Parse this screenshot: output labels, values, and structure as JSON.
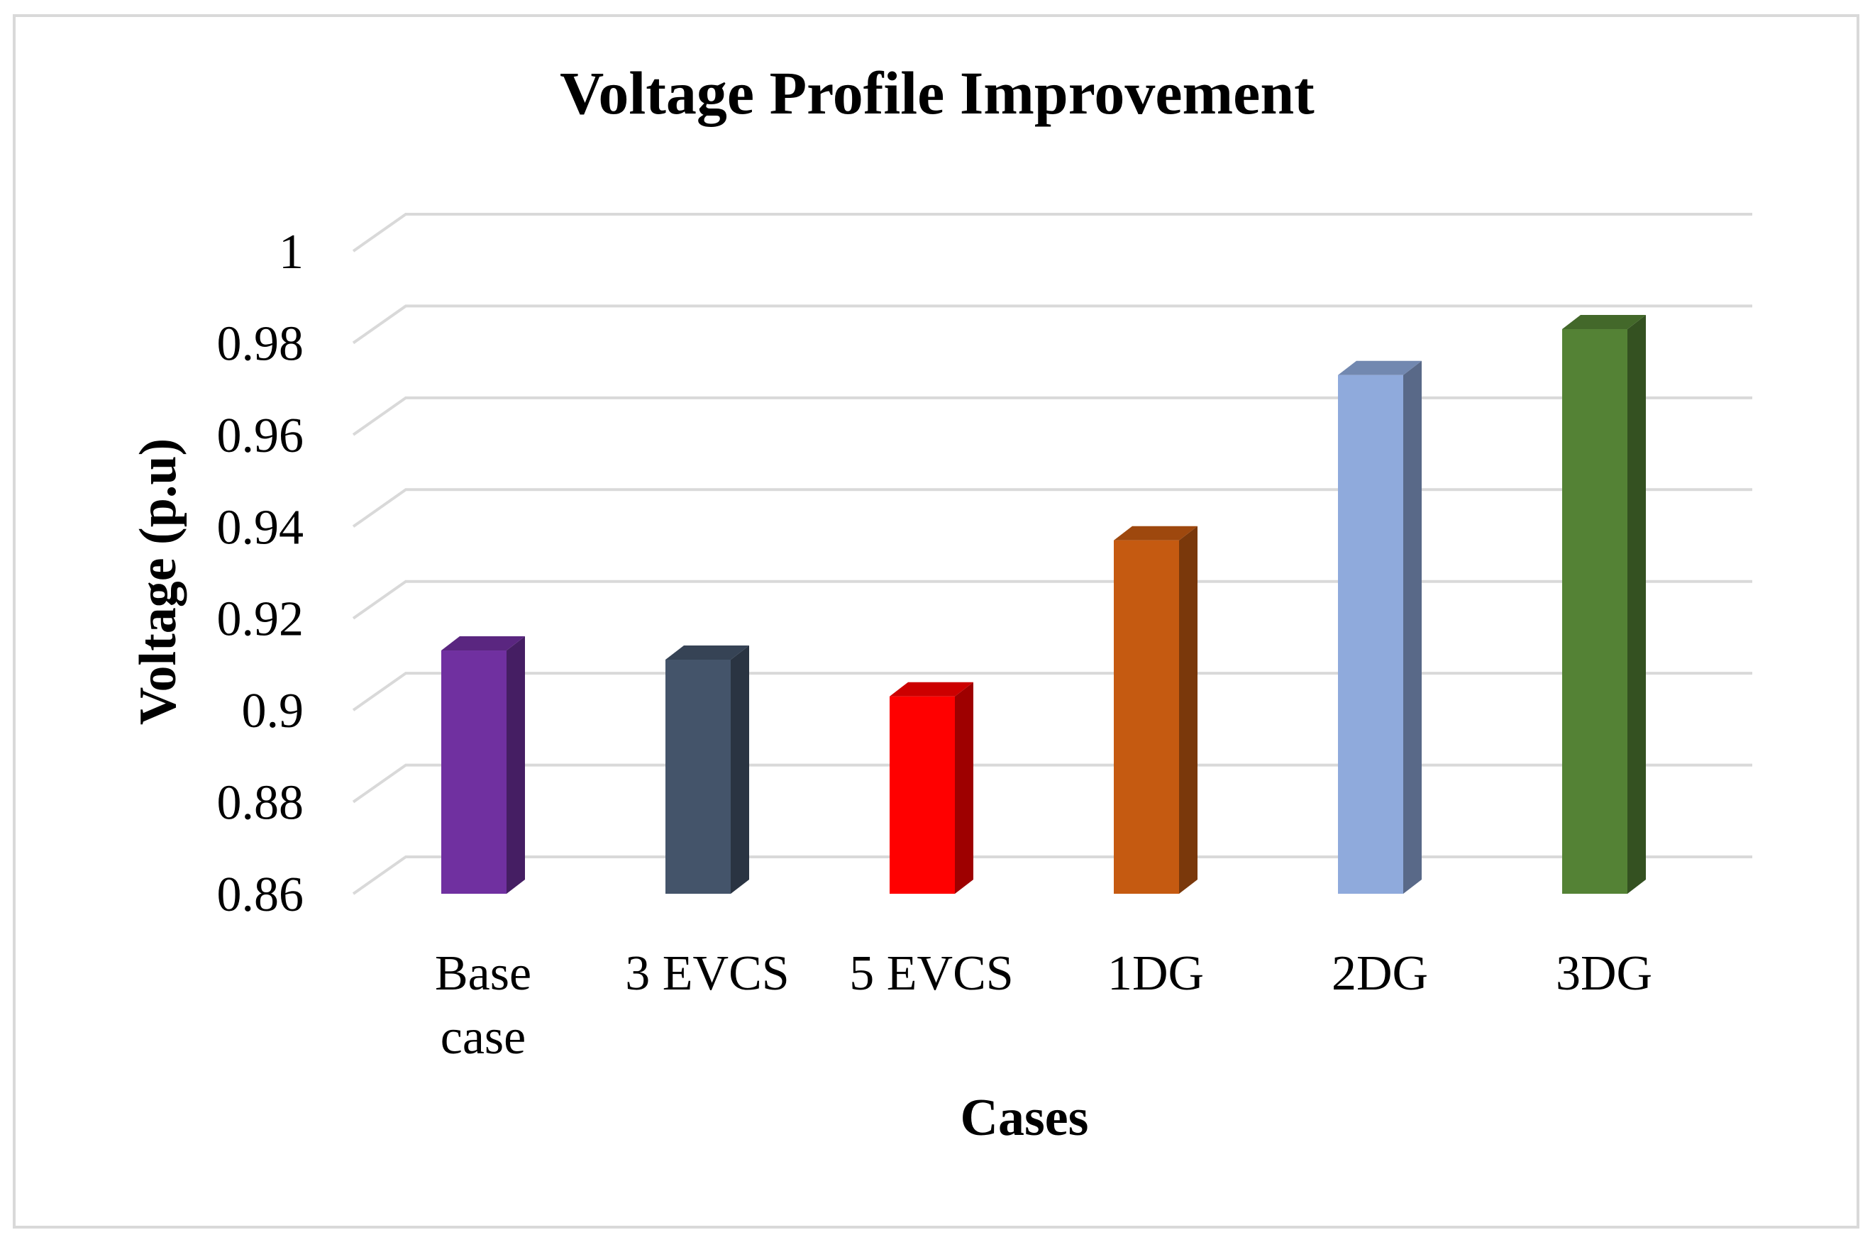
{
  "chart_data": {
    "type": "bar",
    "style": "3d-column",
    "title": "Voltage Profile Improvement",
    "xlabel": "Cases",
    "ylabel": "Voltage (p.u)",
    "categories": [
      "Base case",
      "3 EVCS",
      "5 EVCS",
      "1DG",
      "2DG",
      "3DG"
    ],
    "category_lines": [
      [
        "Base",
        "case"
      ],
      [
        "3 EVCS"
      ],
      [
        "5 EVCS"
      ],
      [
        "1DG"
      ],
      [
        "2DG"
      ],
      [
        "3DG"
      ]
    ],
    "values": [
      0.913,
      0.911,
      0.903,
      0.937,
      0.973,
      0.983
    ],
    "colors": [
      "#7030a0",
      "#44546a",
      "#ff0000",
      "#c55a11",
      "#8faadc",
      "#548235"
    ],
    "ylim": [
      0.86,
      1.0
    ],
    "yticks": [
      0.86,
      0.88,
      0.9,
      0.92,
      0.94,
      0.96,
      0.98,
      1
    ],
    "ytick_labels": [
      "0.86",
      "0.88",
      "0.9",
      "0.92",
      "0.94",
      "0.96",
      "0.98",
      "1"
    ],
    "grid": true,
    "legend": "none"
  }
}
